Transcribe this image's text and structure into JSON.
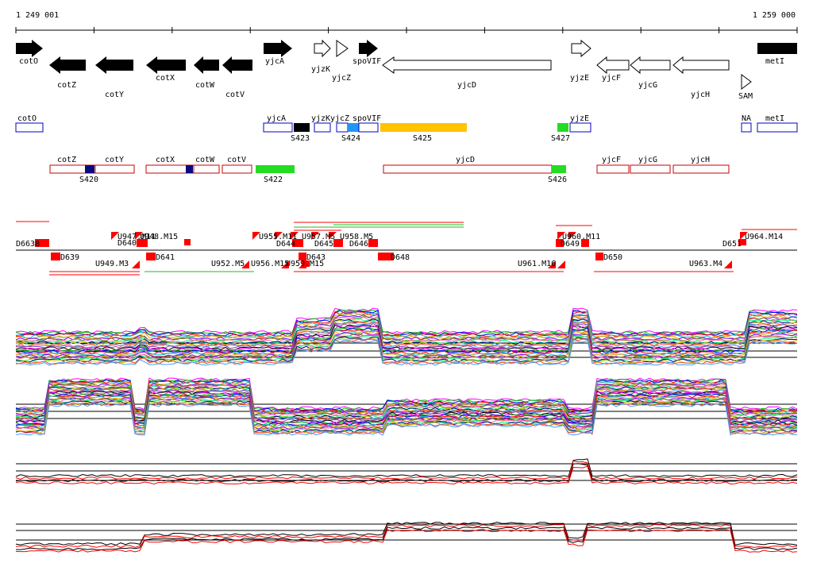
{
  "coords": {
    "start": "1 249 001",
    "end": "1 259 000"
  },
  "genes": [
    {
      "label": "cotO",
      "filled": true
    },
    {
      "label": "cotZ",
      "filled": true
    },
    {
      "label": "cotY",
      "filled": true
    },
    {
      "label": "cotX",
      "filled": true
    },
    {
      "label": "cotW",
      "filled": true
    },
    {
      "label": "cotV",
      "filled": true
    },
    {
      "label": "yjcA",
      "filled": true
    },
    {
      "label": "yjzK",
      "filled": false
    },
    {
      "label": "yjcZ",
      "filled": false
    },
    {
      "label": "spoVIF",
      "filled": true
    },
    {
      "label": "yjcD",
      "filled": false
    },
    {
      "label": "yjzE",
      "filled": false
    },
    {
      "label": "yjcF",
      "filled": false
    },
    {
      "label": "yjcG",
      "filled": false
    },
    {
      "label": "yjcH",
      "filled": false
    },
    {
      "label": "SAM",
      "filled": false
    },
    {
      "label": "metI",
      "filled": true
    }
  ],
  "operons_top": [
    {
      "label": "cotO"
    },
    {
      "label": "yjcA"
    },
    {
      "label": "yjzK"
    },
    {
      "label": "yjcZ"
    },
    {
      "label": "spoVIF"
    },
    {
      "label": "yjzE"
    },
    {
      "label": "NA"
    },
    {
      "label": "metI"
    }
  ],
  "operons_bottom": [
    {
      "label": "cotZ"
    },
    {
      "label": "cotY"
    },
    {
      "label": "cotX"
    },
    {
      "label": "cotW"
    },
    {
      "label": "cotV"
    },
    {
      "label": "yjcD"
    },
    {
      "label": "yjcF"
    },
    {
      "label": "yjcG"
    },
    {
      "label": "yjcH"
    }
  ],
  "segments": [
    {
      "label": "S423",
      "color": "#000000"
    },
    {
      "label": "S424",
      "color": "#2196f3"
    },
    {
      "label": "S425",
      "color": "#ffc400"
    },
    {
      "label": "S427",
      "color": "#22dd22"
    },
    {
      "label": "S420",
      "color": "#0a0a80"
    },
    {
      "label": "S422",
      "color": "#22dd22"
    },
    {
      "label": "S426",
      "color": "#22dd22"
    }
  ],
  "features_above": [
    {
      "label": "D6638"
    },
    {
      "label": "U947.M11"
    },
    {
      "label": "D640"
    },
    {
      "label": "U948.M15"
    },
    {
      "label": "U955.M11"
    },
    {
      "label": "D644"
    },
    {
      "label": "U957.M5"
    },
    {
      "label": "D645"
    },
    {
      "label": "U958.M5"
    },
    {
      "label": "D646"
    },
    {
      "label": "U960.M11"
    },
    {
      "label": "D649"
    },
    {
      "label": "D651"
    },
    {
      "label": "U964.M14"
    }
  ],
  "features_below": [
    {
      "label": "D639"
    },
    {
      "label": "U949.M3"
    },
    {
      "label": "D641"
    },
    {
      "label": "U952.M5"
    },
    {
      "label": "U956.M15"
    },
    {
      "label": "D643"
    },
    {
      "label": "U959.M15"
    },
    {
      "label": "D648"
    },
    {
      "label": "U961.M16"
    },
    {
      "label": "D650"
    },
    {
      "label": "U963.M4"
    }
  ],
  "colors": {
    "feature_red": "#ff0000",
    "gene_outline": "#000000",
    "operon_blue": "#0000cc",
    "operon_red": "#cc0000",
    "track_red": "#ff0000",
    "track_black": "#000000"
  }
}
